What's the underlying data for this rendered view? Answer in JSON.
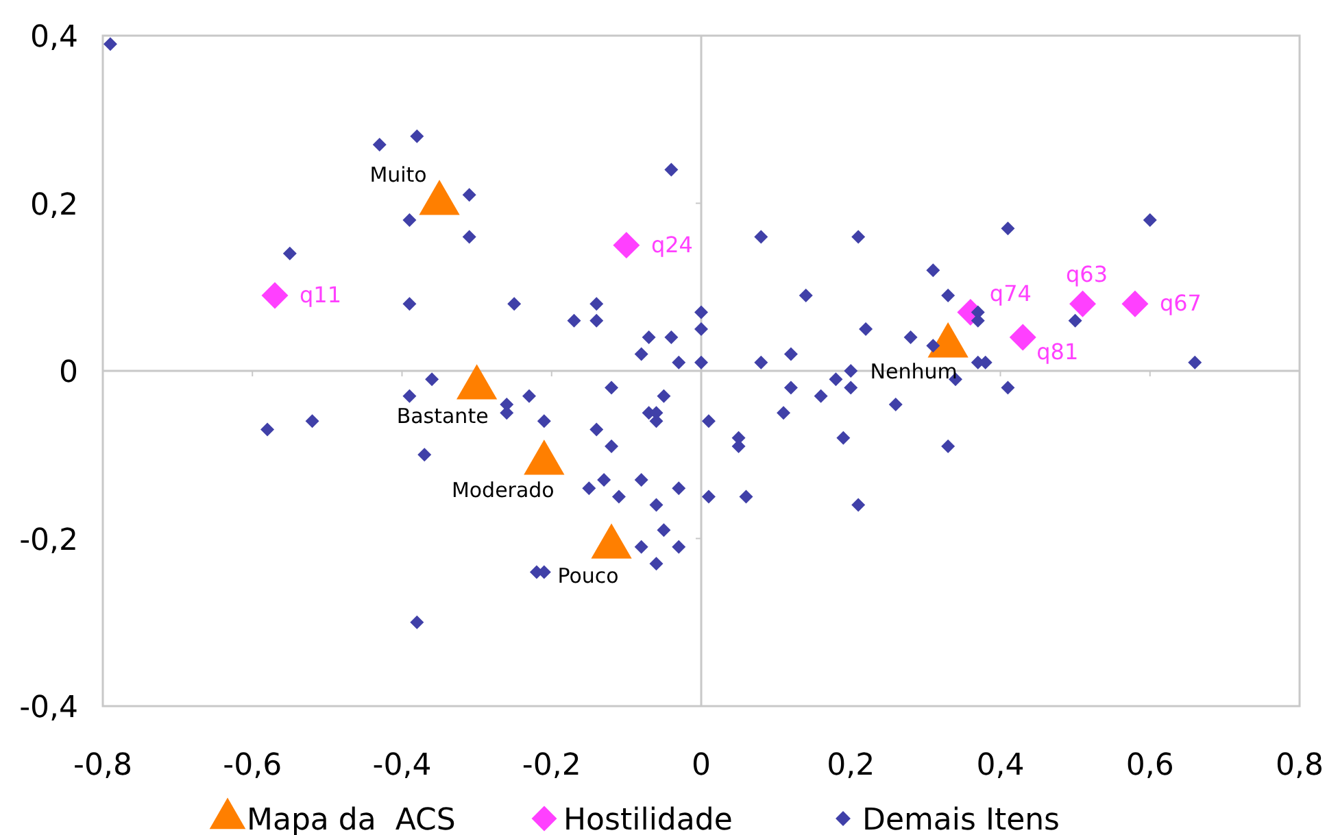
{
  "chart_data": {
    "type": "scatter",
    "xlim": [
      -0.8,
      0.8
    ],
    "ylim": [
      -0.4,
      0.4
    ],
    "xticks": [
      {
        "value": -0.8,
        "label": "-0,8"
      },
      {
        "value": -0.6,
        "label": "-0,6"
      },
      {
        "value": -0.4,
        "label": "-0,4"
      },
      {
        "value": -0.2,
        "label": "-0,2"
      },
      {
        "value": 0,
        "label": "0"
      },
      {
        "value": 0.2,
        "label": "0,2"
      },
      {
        "value": 0.4,
        "label": "0,4"
      },
      {
        "value": 0.6,
        "label": "0,6"
      },
      {
        "value": 0.8,
        "label": "0,8"
      }
    ],
    "yticks": [
      {
        "value": -0.4,
        "label": "-0,4"
      },
      {
        "value": -0.2,
        "label": "-0,2"
      },
      {
        "value": 0,
        "label": "0"
      },
      {
        "value": 0.2,
        "label": "0,2"
      },
      {
        "value": 0.4,
        "label": "0,4"
      }
    ],
    "legend": "bottom",
    "series": [
      {
        "name": "Mapa da  ACS",
        "color": "#ff7f00",
        "marker": "triangle",
        "x": [
          -0.35,
          -0.3,
          -0.21,
          -0.12,
          0.33
        ],
        "values": [
          0.2,
          -0.02,
          -0.11,
          -0.21,
          0.03
        ]
      },
      {
        "name": "Hostilidade",
        "color": "#ff40ff",
        "marker": "diamond",
        "x": [
          -0.57,
          -0.1,
          0.36,
          0.43,
          0.51,
          0.58
        ],
        "values": [
          0.09,
          0.15,
          0.07,
          0.04,
          0.08,
          0.08
        ]
      },
      {
        "name": "Demais Itens",
        "color": "#4040a8",
        "marker": "diamond",
        "x": [
          -0.79,
          -0.43,
          -0.38,
          -0.31,
          -0.39,
          -0.31,
          -0.55,
          -0.39,
          -0.25,
          -0.17,
          -0.14,
          -0.14,
          -0.04,
          -0.07,
          -0.04,
          -0.08,
          -0.03,
          0,
          0,
          0,
          0.08,
          0.21,
          0.41,
          0.6,
          0.31,
          0.14,
          0.33,
          0.37,
          0.5,
          0.22,
          0.28,
          0.31,
          0.12,
          0.08,
          0.37,
          0.38,
          0.66,
          0.37,
          0.01,
          0.05,
          0.05,
          0.01,
          0.06,
          0.11,
          0.12,
          0.16,
          0.18,
          0.2,
          0.2,
          0.19,
          0.26,
          0.34,
          0.41,
          0.33,
          0.21,
          -0.36,
          -0.39,
          -0.58,
          -0.52,
          -0.26,
          -0.26,
          -0.23,
          -0.21,
          -0.37,
          -0.12,
          -0.05,
          -0.07,
          -0.06,
          -0.06,
          -0.14,
          -0.12,
          -0.15,
          -0.13,
          -0.11,
          -0.08,
          -0.03,
          -0.06,
          -0.05,
          -0.08,
          -0.03,
          -0.06,
          -0.22,
          -0.21,
          -0.38
        ],
        "values": [
          0.39,
          0.27,
          0.28,
          0.21,
          0.18,
          0.16,
          0.14,
          0.08,
          0.08,
          0.06,
          0.08,
          0.06,
          0.24,
          0.04,
          0.04,
          0.02,
          0.01,
          0.07,
          0.05,
          0.01,
          0.16,
          0.16,
          0.17,
          0.18,
          0.12,
          0.09,
          0.09,
          0.06,
          0.06,
          0.05,
          0.04,
          0.03,
          0.02,
          0.01,
          0.01,
          0.01,
          0.01,
          0.07,
          -0.06,
          -0.08,
          -0.09,
          -0.15,
          -0.15,
          -0.05,
          -0.02,
          -0.03,
          -0.01,
          0.0,
          -0.02,
          -0.08,
          -0.04,
          -0.01,
          -0.02,
          -0.09,
          -0.16,
          -0.01,
          -0.03,
          -0.07,
          -0.06,
          -0.04,
          -0.05,
          -0.03,
          -0.06,
          -0.1,
          -0.02,
          -0.03,
          -0.05,
          -0.05,
          -0.06,
          -0.07,
          -0.09,
          -0.14,
          -0.13,
          -0.15,
          -0.13,
          -0.14,
          -0.16,
          -0.19,
          -0.21,
          -0.21,
          -0.23,
          -0.24,
          -0.24,
          -0.3
        ]
      }
    ],
    "annotations": [
      {
        "text": "Muito",
        "x": -0.35,
        "y": 0.2
      },
      {
        "text": "Bastante",
        "x": -0.3,
        "y": -0.02
      },
      {
        "text": "Moderado",
        "x": -0.21,
        "y": -0.11
      },
      {
        "text": "Pouco",
        "x": -0.12,
        "y": -0.21
      },
      {
        "text": "Nenhum",
        "x": 0.33,
        "y": 0.03
      },
      {
        "text": "q11",
        "x": -0.57,
        "y": 0.09
      },
      {
        "text": "q24",
        "x": -0.1,
        "y": 0.15
      },
      {
        "text": "q74",
        "x": 0.36,
        "y": 0.07
      },
      {
        "text": "q81",
        "x": 0.43,
        "y": 0.04
      },
      {
        "text": "q63",
        "x": 0.51,
        "y": 0.08
      },
      {
        "text": "q67",
        "x": 0.58,
        "y": 0.08
      }
    ]
  }
}
